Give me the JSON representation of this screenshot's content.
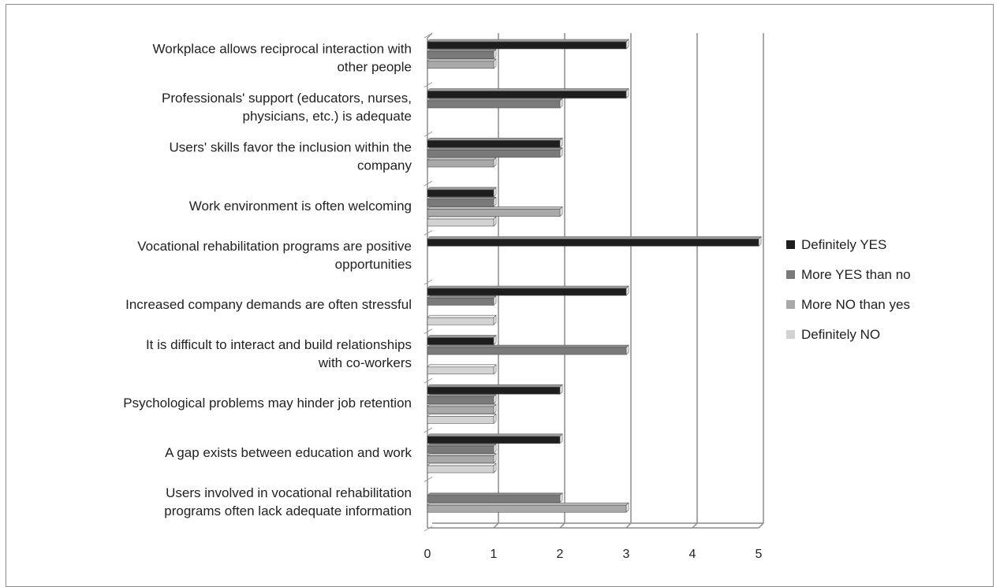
{
  "chart_data": {
    "type": "bar",
    "orientation": "horizontal",
    "categories": [
      [
        "Workplace allows reciprocal interaction with",
        "other people"
      ],
      [
        "Professionals' support (educators, nurses,",
        "physicians, etc.) is adequate"
      ],
      [
        "Users' skills favor the inclusion within the",
        "company"
      ],
      [
        "Work environment is often welcoming"
      ],
      [
        "Vocational rehabilitation programs are positive",
        "opportunities"
      ],
      [
        "Increased company demands are often stressful"
      ],
      [
        "It is difficult to interact and build relationships",
        "with co-workers"
      ],
      [
        "Psychological problems may hinder job retention"
      ],
      [
        "A gap exists between education and work"
      ],
      [
        "Users involved in vocational rehabilitation",
        "programs often lack adequate information"
      ]
    ],
    "series": [
      {
        "name": "Definitely YES",
        "color": "#1e1e1e",
        "values": [
          3,
          3,
          2,
          1,
          5,
          3,
          1,
          2,
          2,
          0
        ]
      },
      {
        "name": "More YES than no",
        "color": "#7a7a7a",
        "values": [
          1,
          2,
          2,
          1,
          0,
          1,
          3,
          1,
          1,
          2
        ]
      },
      {
        "name": "More NO than yes",
        "color": "#a9a9a9",
        "values": [
          1,
          0,
          1,
          2,
          0,
          0,
          0,
          1,
          1,
          3
        ]
      },
      {
        "name": "Definitely NO",
        "color": "#d3d3d3",
        "values": [
          0,
          0,
          0,
          1,
          0,
          1,
          1,
          1,
          1,
          0
        ]
      }
    ],
    "xlim": [
      0,
      5
    ],
    "xticks": [
      "0",
      "1",
      "2",
      "3",
      "4",
      "5"
    ],
    "grid": "vertical",
    "legend": "right",
    "style": "3d-bar"
  }
}
